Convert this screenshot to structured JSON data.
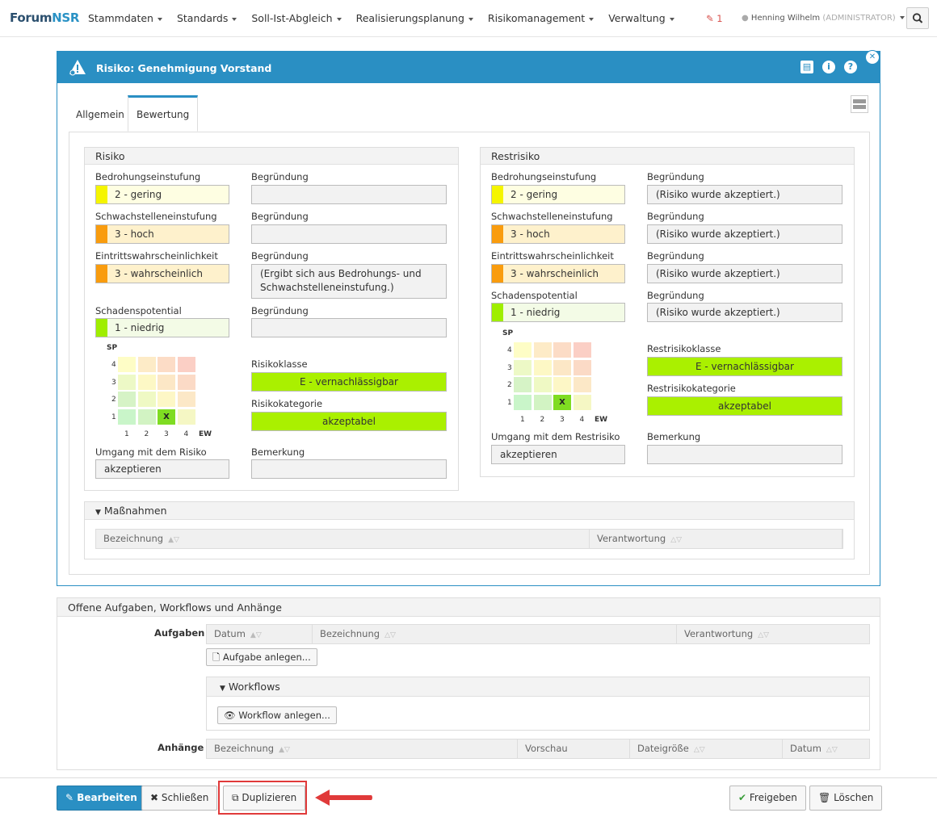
{
  "nav": {
    "brand_a": "Forum",
    "brand_b": "NSR",
    "menu": [
      "Stammdaten",
      "Standards",
      "Soll-Ist-Abgleich",
      "Realisierungsplanung",
      "Risikomanagement",
      "Verwaltung"
    ],
    "notif_count": "1",
    "user": "Henning Wilhelm",
    "role": "(ADMINISTRATOR)"
  },
  "dialog": {
    "title": "Risiko: Genehmigung Vorstand",
    "tabs": [
      "Allgemein",
      "Bewertung"
    ]
  },
  "risiko": {
    "title": "Risiko",
    "bedrohung_label": "Bedrohungseinstufung",
    "bedrohung_value": "2 - gering",
    "schwach_label": "Schwachstelleneinstufung",
    "schwach_value": "3 - hoch",
    "eintritt_label": "Eintrittswahrscheinlichkeit",
    "eintritt_value": "3 - wahrscheinlich",
    "schaden_label": "Schadenspotential",
    "schaden_value": "1 - niedrig",
    "begruendung_label": "Begründung",
    "b1": "",
    "b2": "",
    "b3_line1": "(Ergibt sich aus Bedrohungs- und",
    "b3_line2": "Schwachstelleneinstufung.)",
    "b4": "",
    "klasse_label": "Risikoklasse",
    "klasse_value": "E - vernachlässigbar",
    "kategorie_label": "Risikokategorie",
    "kategorie_value": "akzeptabel",
    "umgang_label": "Umgang mit dem Risiko",
    "umgang_value": "akzeptieren",
    "bemerkung_label": "Bemerkung",
    "bemerkung_value": "",
    "matrix_mark": "X",
    "sp": "SP",
    "ew": "EW"
  },
  "restrisiko": {
    "title": "Restrisiko",
    "bedrohung_label": "Bedrohungseinstufung",
    "bedrohung_value": "2 - gering",
    "schwach_label": "Schwachstelleneinstufung",
    "schwach_value": "3 - hoch",
    "eintritt_label": "Eintrittswahrscheinlichkeit",
    "eintritt_value": "3 - wahrscheinlich",
    "schaden_label": "Schadenspotential",
    "schaden_value": "1 - niedrig",
    "begruendung_label": "Begründung",
    "b_value": "(Risiko wurde akzeptiert.)",
    "klasse_label": "Restrisikoklasse",
    "klasse_value": "E - vernachlässigbar",
    "kategorie_label": "Restrisikokategorie",
    "kategorie_value": "akzeptabel",
    "umgang_label": "Umgang mit dem Restrisiko",
    "umgang_value": "akzeptieren",
    "bemerkung_label": "Bemerkung",
    "bemerkung_value": ""
  },
  "matrix": {
    "ticks": [
      "1",
      "2",
      "3",
      "4"
    ],
    "mark_ew": 3,
    "mark_sp": 1
  },
  "massnahmen": {
    "title": "Maßnahmen",
    "col1": "Bezeichnung",
    "col2": "Verantwortung"
  },
  "offene": {
    "title": "Offene Aufgaben, Workflows und Anhänge",
    "aufgaben_label": "Aufgaben",
    "aufgaben_cols": [
      "Datum",
      "Bezeichnung",
      "Verantwortung"
    ],
    "aufgabe_btn": "Aufgabe anlegen...",
    "workflows_title": "Workflows",
    "workflow_btn": "Workflow anlegen...",
    "anhaenge_label": "Anhänge",
    "anhaenge_cols": [
      "Bezeichnung",
      "Vorschau",
      "Dateigröße",
      "Datum"
    ]
  },
  "footer": {
    "bearbeiten": "Bearbeiten",
    "schliessen": "Schließen",
    "duplizieren": "Duplizieren",
    "freigeben": "Freigeben",
    "loeschen": "Löschen"
  },
  "colors": {
    "accent": "#2a8fc3",
    "highlight": "#e03a3a"
  }
}
